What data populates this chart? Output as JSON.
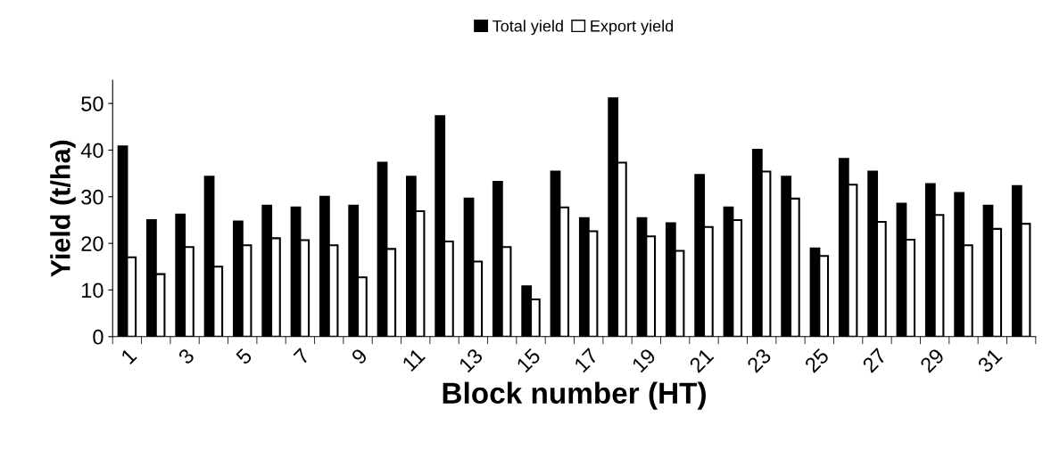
{
  "chart_data": {
    "type": "bar",
    "xlabel": "Block number (HT)",
    "ylabel": "Yield (t/ha)",
    "categories": [
      "1",
      null,
      "3",
      null,
      "5",
      null,
      "7",
      null,
      "9",
      null,
      "11",
      null,
      "13",
      null,
      "15",
      null,
      "17",
      null,
      "19",
      null,
      "21",
      null,
      "23",
      null,
      "25",
      null,
      "27",
      null,
      "29",
      null,
      "31",
      null
    ],
    "series": [
      {
        "name": "Total yield",
        "color": "#000000",
        "values": [
          40.8,
          25,
          26.2,
          34.3,
          24.7,
          28.1,
          27.7,
          30,
          28.1,
          37.3,
          34.3,
          47.3,
          29.6,
          33.2,
          10.8,
          35.4,
          25.4,
          51.1,
          25.4,
          24.3,
          34.7,
          27.7,
          40.1,
          34.3,
          18.9,
          38.1,
          35.4,
          28.5,
          32.7,
          30.8,
          28.1,
          32.3
        ]
      },
      {
        "name": "Export yield",
        "color": "#ffffff",
        "values": [
          17,
          13.4,
          19.2,
          15,
          19.6,
          21.1,
          20.7,
          19.6,
          12.7,
          18.8,
          26.9,
          20.4,
          16.1,
          19.2,
          8.0,
          27.7,
          22.6,
          37.3,
          21.5,
          18.4,
          23.5,
          25,
          35.4,
          29.6,
          17.3,
          32.6,
          24.6,
          20.8,
          26.1,
          19.6,
          23.1,
          24.2
        ]
      }
    ],
    "ylim": [
      0,
      55
    ],
    "yticks": [
      0,
      10,
      20,
      30,
      40,
      50
    ],
    "grid": false,
    "legend": "top"
  }
}
